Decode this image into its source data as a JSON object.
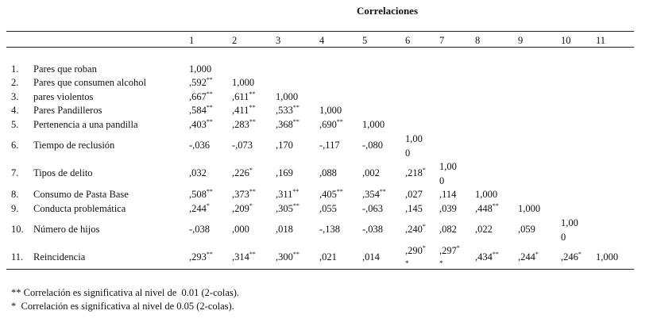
{
  "title": "Correlaciones",
  "columns": [
    "1",
    "2",
    "3",
    "4",
    "5",
    "6",
    "7",
    "8",
    "9",
    "10",
    "11"
  ],
  "rows": [
    {
      "num": "1.",
      "label": "Pares que roban",
      "cells": [
        {
          "v": "1,000",
          "s": ""
        }
      ]
    },
    {
      "num": "2.",
      "label": "Pares que consumen alcohol",
      "cells": [
        {
          "v": ",592",
          "s": "**"
        },
        {
          "v": "1,000",
          "s": ""
        }
      ]
    },
    {
      "num": "3.",
      "label": "pares violentos",
      "cells": [
        {
          "v": ",667",
          "s": "**"
        },
        {
          "v": ",611",
          "s": "**"
        },
        {
          "v": "1,000",
          "s": ""
        }
      ]
    },
    {
      "num": "4.",
      "label": "Pares Pandilleros",
      "cells": [
        {
          "v": ",584",
          "s": "**"
        },
        {
          "v": ",411",
          "s": "**"
        },
        {
          "v": ",533",
          "s": "**"
        },
        {
          "v": "1,000",
          "s": ""
        }
      ]
    },
    {
      "num": "5.",
      "label": "Pertenencia a una pandilla",
      "cells": [
        {
          "v": ",403",
          "s": "**"
        },
        {
          "v": ",283",
          "s": "**"
        },
        {
          "v": ",368",
          "s": "**"
        },
        {
          "v": ",690",
          "s": "**"
        },
        {
          "v": "1,000",
          "s": ""
        }
      ]
    },
    {
      "num": "6.",
      "label": "Tiempo de reclusión",
      "cells": [
        {
          "v": "-,036",
          "s": ""
        },
        {
          "v": "-,073",
          "s": ""
        },
        {
          "v": ",170",
          "s": ""
        },
        {
          "v": "-,117",
          "s": ""
        },
        {
          "v": "-,080",
          "s": ""
        },
        {
          "v": "1,00",
          "v2": "0",
          "s": ""
        }
      ]
    },
    {
      "num": "7.",
      "label": "Tipos de delito",
      "cells": [
        {
          "v": ",032",
          "s": ""
        },
        {
          "v": ",226",
          "s": "*"
        },
        {
          "v": ",169",
          "s": ""
        },
        {
          "v": ",088",
          "s": ""
        },
        {
          "v": ",002",
          "s": ""
        },
        {
          "v": ",218",
          "s": "*"
        },
        {
          "v": "1,00",
          "v2": "0",
          "s": ""
        }
      ]
    },
    {
      "num": "8.",
      "label": "Consumo de Pasta Base",
      "cells": [
        {
          "v": ",508",
          "s": "**"
        },
        {
          "v": ",373",
          "s": "**"
        },
        {
          "v": ",311",
          "s": "**"
        },
        {
          "v": ",405",
          "s": "**"
        },
        {
          "v": ",354",
          "s": "**"
        },
        {
          "v": ",027",
          "s": ""
        },
        {
          "v": ",114",
          "s": ""
        },
        {
          "v": "1,000",
          "s": ""
        }
      ]
    },
    {
      "num": "9.",
      "label": "Conducta problemática",
      "cells": [
        {
          "v": ",244",
          "s": "*"
        },
        {
          "v": ",209",
          "s": "*"
        },
        {
          "v": ",305",
          "s": "**"
        },
        {
          "v": ",055",
          "s": ""
        },
        {
          "v": "-,063",
          "s": ""
        },
        {
          "v": ",145",
          "s": ""
        },
        {
          "v": ",039",
          "s": ""
        },
        {
          "v": ",448",
          "s": "**"
        },
        {
          "v": "1,000",
          "s": ""
        }
      ]
    },
    {
      "num": "10.",
      "label": "Número de hijos",
      "cells": [
        {
          "v": "-,038",
          "s": ""
        },
        {
          "v": ",000",
          "s": ""
        },
        {
          "v": ",018",
          "s": ""
        },
        {
          "v": "-,138",
          "s": ""
        },
        {
          "v": "-,038",
          "s": ""
        },
        {
          "v": ",240",
          "s": "*"
        },
        {
          "v": ",082",
          "s": ""
        },
        {
          "v": ",022",
          "s": ""
        },
        {
          "v": ",059",
          "s": ""
        },
        {
          "v": "1,00",
          "v2": "0",
          "s": ""
        }
      ]
    },
    {
      "num": "11.",
      "label": "Reincidencia",
      "cells": [
        {
          "v": ",293",
          "s": "**"
        },
        {
          "v": ",314",
          "s": "**"
        },
        {
          "v": ",300",
          "s": "**"
        },
        {
          "v": ",021",
          "s": ""
        },
        {
          "v": ",014",
          "s": ""
        },
        {
          "v": ",290",
          "s": "*",
          "pre": "*"
        },
        {
          "v": ",297",
          "s": "*",
          "pre": "*"
        },
        {
          "v": ",434",
          "s": "**"
        },
        {
          "v": ",244",
          "s": "*"
        },
        {
          "v": ",246",
          "s": "*"
        },
        {
          "v": "1,000",
          "s": ""
        }
      ]
    }
  ],
  "footnotes": [
    "** Correlación es significativa al nivel de  0.01 (2-colas).",
    "*  Correlación es significativa al nivel de 0.05 (2-colas)."
  ]
}
